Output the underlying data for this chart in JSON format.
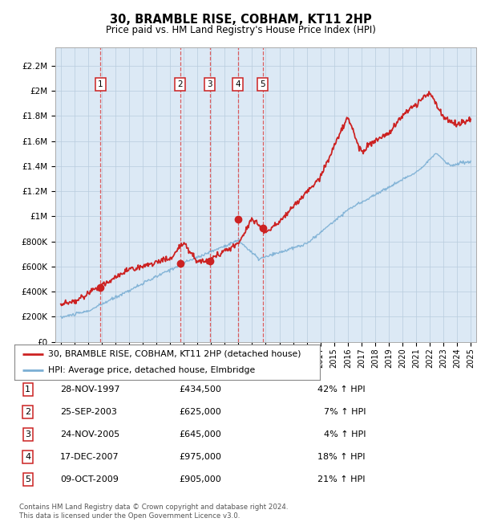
{
  "title": "30, BRAMBLE RISE, COBHAM, KT11 2HP",
  "subtitle": "Price paid vs. HM Land Registry's House Price Index (HPI)",
  "ylabel_ticks": [
    "£0",
    "£200K",
    "£400K",
    "£600K",
    "£800K",
    "£1M",
    "£1.2M",
    "£1.4M",
    "£1.6M",
    "£1.8M",
    "£2M",
    "£2.2M"
  ],
  "ylabel_values": [
    0,
    200000,
    400000,
    600000,
    800000,
    1000000,
    1200000,
    1400000,
    1600000,
    1800000,
    2000000,
    2200000
  ],
  "ylim": [
    0,
    2350000
  ],
  "sale_dates_num": [
    1997.91,
    2003.73,
    2005.9,
    2007.96,
    2009.77
  ],
  "sale_prices": [
    434500,
    625000,
    645000,
    975000,
    905000
  ],
  "sale_labels": [
    "1",
    "2",
    "3",
    "4",
    "5"
  ],
  "hpi_color": "#7bafd4",
  "price_color": "#cc2222",
  "vline_color": "#dd4444",
  "dot_color": "#cc2222",
  "background_color": "#dce9f5",
  "grid_color": "#b8ccdd",
  "legend_price_label": "30, BRAMBLE RISE, COBHAM, KT11 2HP (detached house)",
  "legend_hpi_label": "HPI: Average price, detached house, Elmbridge",
  "table_rows": [
    [
      "1",
      "28-NOV-1997",
      "£434,500",
      "42% ↑ HPI"
    ],
    [
      "2",
      "25-SEP-2003",
      "£625,000",
      "7% ↑ HPI"
    ],
    [
      "3",
      "24-NOV-2005",
      "£645,000",
      "4% ↑ HPI"
    ],
    [
      "4",
      "17-DEC-2007",
      "£975,000",
      "18% ↑ HPI"
    ],
    [
      "5",
      "09-OCT-2009",
      "£905,000",
      "21% ↑ HPI"
    ]
  ],
  "footer": "Contains HM Land Registry data © Crown copyright and database right 2024.\nThis data is licensed under the Open Government Licence v3.0.",
  "xmin": 1994.6,
  "xmax": 2025.4
}
